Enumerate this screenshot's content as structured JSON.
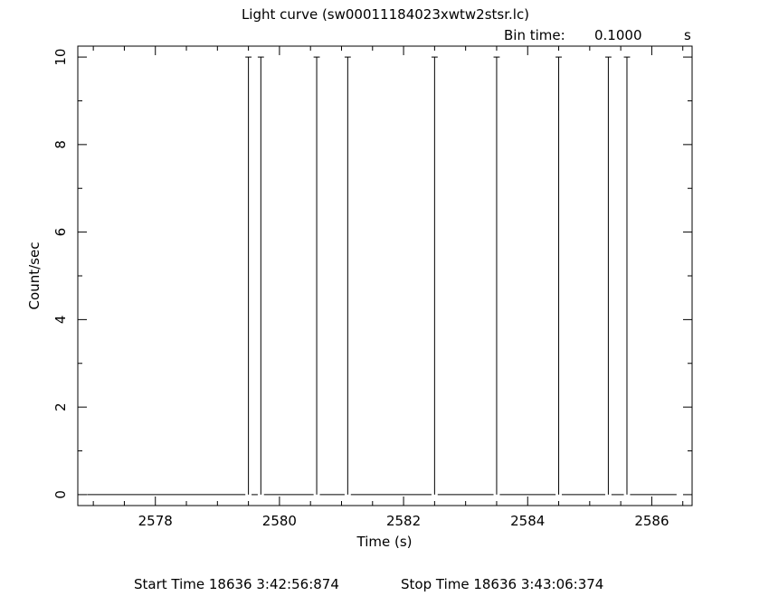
{
  "chart_data": {
    "type": "line",
    "title": "Light curve (sw00011184023xwtw2stsr.lc)",
    "bin_time_label": "Bin time:",
    "bin_time_value": "0.1000",
    "bin_time_unit": "s",
    "xlabel": "Time (s)",
    "ylabel": "Count/sec",
    "xlim": [
      2576.75,
      2586.65
    ],
    "ylim": [
      -0.25,
      10.25
    ],
    "x_major_ticks": [
      2578,
      2580,
      2582,
      2584,
      2586
    ],
    "x_tick_labels": [
      "2578",
      "2580",
      "2582",
      "2584",
      "2586"
    ],
    "x_minor_step": 0.5,
    "y_major_ticks": [
      0,
      2,
      4,
      6,
      8,
      10
    ],
    "y_tick_labels": [
      "0",
      "2",
      "4",
      "6",
      "8",
      "10"
    ],
    "y_minor_step": 1,
    "grid": false,
    "bin_width": 0.1,
    "baseline_range": [
      2576.9,
      2586.4
    ],
    "series": [
      {
        "x": [
          2579.5,
          2579.7,
          2580.6,
          2581.1,
          2582.5,
          2583.5,
          2584.5,
          2585.3,
          2585.6
        ],
        "y": [
          10,
          10,
          10,
          10,
          10,
          10,
          10,
          10,
          10
        ]
      }
    ]
  },
  "footer": {
    "start_label": "Start Time 18636  3:42:56:874",
    "stop_label": "Stop Time 18636  3:43:06:374"
  }
}
